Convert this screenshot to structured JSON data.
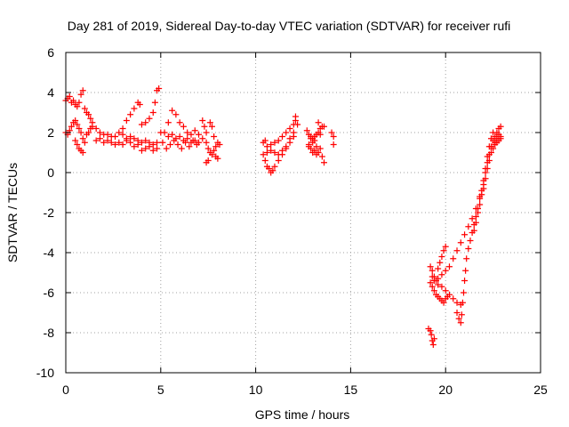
{
  "chart_data": {
    "type": "scatter",
    "title": "Day 281 of 2019, Sidereal Day-to-day VTEC variation (SDTVAR) for receiver rufi",
    "xlabel": "GPS time / hours",
    "ylabel": "SDTVAR / TECUs",
    "xlim": [
      0,
      25
    ],
    "ylim": [
      -10,
      6
    ],
    "xticks": [
      0,
      5,
      10,
      15,
      20,
      25
    ],
    "yticks": [
      -10,
      -8,
      -6,
      -4,
      -2,
      0,
      2,
      4,
      6
    ],
    "grid": true,
    "marker": "plus",
    "color": "#ff0000",
    "series": [
      {
        "points": [
          [
            0.0,
            3.6
          ],
          [
            0.1,
            3.7
          ],
          [
            0.2,
            3.8
          ],
          [
            0.3,
            3.5
          ],
          [
            0.4,
            3.6
          ],
          [
            0.5,
            3.4
          ],
          [
            0.6,
            3.3
          ],
          [
            0.7,
            3.5
          ],
          [
            0.8,
            3.9
          ],
          [
            0.9,
            4.1
          ],
          [
            1.0,
            3.2
          ],
          [
            1.1,
            3.0
          ],
          [
            1.2,
            2.9
          ],
          [
            1.3,
            2.7
          ],
          [
            1.4,
            2.5
          ],
          [
            0.0,
            2.0
          ],
          [
            0.1,
            1.9
          ],
          [
            0.2,
            2.1
          ],
          [
            0.3,
            2.3
          ],
          [
            0.4,
            2.5
          ],
          [
            0.5,
            2.6
          ],
          [
            0.6,
            2.4
          ],
          [
            0.7,
            2.2
          ],
          [
            0.8,
            2.0
          ],
          [
            0.9,
            1.7
          ],
          [
            1.0,
            1.5
          ],
          [
            1.1,
            1.9
          ],
          [
            1.2,
            2.0
          ],
          [
            1.3,
            2.2
          ],
          [
            1.4,
            2.3
          ],
          [
            0.5,
            1.6
          ],
          [
            0.6,
            1.4
          ],
          [
            0.7,
            1.2
          ],
          [
            0.8,
            1.1
          ],
          [
            0.9,
            1.0
          ],
          [
            1.6,
            2.2
          ],
          [
            1.8,
            2.0
          ],
          [
            2.0,
            1.9
          ],
          [
            2.2,
            1.9
          ],
          [
            2.4,
            1.8
          ],
          [
            2.6,
            1.8
          ],
          [
            2.8,
            2.0
          ],
          [
            3.0,
            2.2
          ],
          [
            3.2,
            2.6
          ],
          [
            3.4,
            2.9
          ],
          [
            3.6,
            3.2
          ],
          [
            3.8,
            3.5
          ],
          [
            3.9,
            3.4
          ],
          [
            1.6,
            1.6
          ],
          [
            1.8,
            1.7
          ],
          [
            2.0,
            1.5
          ],
          [
            2.2,
            1.6
          ],
          [
            2.4,
            1.5
          ],
          [
            2.6,
            1.4
          ],
          [
            2.8,
            1.5
          ],
          [
            3.0,
            1.4
          ],
          [
            3.2,
            1.6
          ],
          [
            3.4,
            1.5
          ],
          [
            3.6,
            1.3
          ],
          [
            3.8,
            1.4
          ],
          [
            4.0,
            1.5
          ],
          [
            4.2,
            1.6
          ],
          [
            4.4,
            1.5
          ],
          [
            4.6,
            1.4
          ],
          [
            4.8,
            1.5
          ],
          [
            3.0,
            1.9
          ],
          [
            3.2,
            1.7
          ],
          [
            3.4,
            1.8
          ],
          [
            3.6,
            1.7
          ],
          [
            3.8,
            1.6
          ],
          [
            4.0,
            1.1
          ],
          [
            4.2,
            1.2
          ],
          [
            4.4,
            1.3
          ],
          [
            4.6,
            1.1
          ],
          [
            4.8,
            1.2
          ],
          [
            4.0,
            2.4
          ],
          [
            4.2,
            2.5
          ],
          [
            4.4,
            2.7
          ],
          [
            4.6,
            3.0
          ],
          [
            4.7,
            3.5
          ],
          [
            4.8,
            4.1
          ],
          [
            4.9,
            4.2
          ],
          [
            5.0,
            2.0
          ],
          [
            5.1,
            1.5
          ],
          [
            5.3,
            1.2
          ],
          [
            5.5,
            1.4
          ],
          [
            5.7,
            1.6
          ],
          [
            5.9,
            1.4
          ],
          [
            6.1,
            1.2
          ],
          [
            6.3,
            1.5
          ],
          [
            6.5,
            1.3
          ],
          [
            6.7,
            1.6
          ],
          [
            6.9,
            1.4
          ],
          [
            5.2,
            2.0
          ],
          [
            5.4,
            2.5
          ],
          [
            5.6,
            3.1
          ],
          [
            5.8,
            2.9
          ],
          [
            6.0,
            2.5
          ],
          [
            6.2,
            2.3
          ],
          [
            6.4,
            2.0
          ],
          [
            6.6,
            1.9
          ],
          [
            6.8,
            2.1
          ],
          [
            7.0,
            1.9
          ],
          [
            7.2,
            1.7
          ],
          [
            7.4,
            1.5
          ],
          [
            5.4,
            1.8
          ],
          [
            5.6,
            1.9
          ],
          [
            5.8,
            1.7
          ],
          [
            6.0,
            1.8
          ],
          [
            6.2,
            1.6
          ],
          [
            6.4,
            1.7
          ],
          [
            6.6,
            1.5
          ],
          [
            6.8,
            1.6
          ],
          [
            7.0,
            1.5
          ],
          [
            7.2,
            2.6
          ],
          [
            7.3,
            2.3
          ],
          [
            7.4,
            2.0
          ],
          [
            7.5,
            1.2
          ],
          [
            7.6,
            1.0
          ],
          [
            7.7,
            0.9
          ],
          [
            7.8,
            1.1
          ],
          [
            7.9,
            1.3
          ],
          [
            8.0,
            1.5
          ],
          [
            8.1,
            1.4
          ],
          [
            7.6,
            2.5
          ],
          [
            7.7,
            2.3
          ],
          [
            7.8,
            1.8
          ],
          [
            7.9,
            0.8
          ],
          [
            8.0,
            0.7
          ],
          [
            7.4,
            0.5
          ],
          [
            7.5,
            0.6
          ],
          [
            10.4,
            0.9
          ],
          [
            10.5,
            0.6
          ],
          [
            10.6,
            0.3
          ],
          [
            10.7,
            0.2
          ],
          [
            10.8,
            0.0
          ],
          [
            10.9,
            0.1
          ],
          [
            11.0,
            0.3
          ],
          [
            11.2,
            0.6
          ],
          [
            11.4,
            0.9
          ],
          [
            11.6,
            1.2
          ],
          [
            11.8,
            1.5
          ],
          [
            12.0,
            1.8
          ],
          [
            10.4,
            1.5
          ],
          [
            10.5,
            1.6
          ],
          [
            10.6,
            1.3
          ],
          [
            10.8,
            1.4
          ],
          [
            11.0,
            1.5
          ],
          [
            11.2,
            1.6
          ],
          [
            11.4,
            1.8
          ],
          [
            11.6,
            2.0
          ],
          [
            11.8,
            2.2
          ],
          [
            12.0,
            2.4
          ],
          [
            12.1,
            2.6
          ],
          [
            12.2,
            2.4
          ],
          [
            10.6,
            1.0
          ],
          [
            10.8,
            1.1
          ],
          [
            11.0,
            1.0
          ],
          [
            11.2,
            0.9
          ],
          [
            11.4,
            1.1
          ],
          [
            11.6,
            1.3
          ],
          [
            11.8,
            1.7
          ],
          [
            12.0,
            2.0
          ],
          [
            12.1,
            2.8
          ],
          [
            12.7,
            2.1
          ],
          [
            12.8,
            1.9
          ],
          [
            12.9,
            1.8
          ],
          [
            13.0,
            1.7
          ],
          [
            13.1,
            1.6
          ],
          [
            13.2,
            1.9
          ],
          [
            13.3,
            2.0
          ],
          [
            13.4,
            2.2
          ],
          [
            13.5,
            2.3
          ],
          [
            13.3,
            2.5
          ],
          [
            13.4,
            1.9
          ],
          [
            12.8,
            1.4
          ],
          [
            12.9,
            1.7
          ],
          [
            13.0,
            1.5
          ],
          [
            13.1,
            1.8
          ],
          [
            13.2,
            1.3
          ],
          [
            12.8,
            1.3
          ],
          [
            12.9,
            1.2
          ],
          [
            13.0,
            1.0
          ],
          [
            13.1,
            1.1
          ],
          [
            13.2,
            0.9
          ],
          [
            13.3,
            1.0
          ],
          [
            13.4,
            1.2
          ],
          [
            13.5,
            0.8
          ],
          [
            13.6,
            0.5
          ],
          [
            13.6,
            2.3
          ],
          [
            14.0,
            2.0
          ],
          [
            14.1,
            1.8
          ],
          [
            14.1,
            1.4
          ],
          [
            19.1,
            -7.8
          ],
          [
            19.2,
            -7.9
          ],
          [
            19.25,
            -8.1
          ],
          [
            19.3,
            -8.4
          ],
          [
            19.35,
            -8.6
          ],
          [
            19.4,
            -8.3
          ],
          [
            19.2,
            -4.7
          ],
          [
            19.3,
            -4.9
          ],
          [
            19.4,
            -5.2
          ],
          [
            19.5,
            -5.4
          ],
          [
            19.6,
            -4.8
          ],
          [
            19.7,
            -4.5
          ],
          [
            19.8,
            -4.2
          ],
          [
            19.9,
            -3.9
          ],
          [
            20.0,
            -3.7
          ],
          [
            19.2,
            -5.5
          ],
          [
            19.3,
            -5.7
          ],
          [
            19.4,
            -5.9
          ],
          [
            19.5,
            -6.1
          ],
          [
            19.6,
            -6.2
          ],
          [
            19.7,
            -6.3
          ],
          [
            19.8,
            -6.4
          ],
          [
            19.9,
            -6.5
          ],
          [
            20.0,
            -6.3
          ],
          [
            20.1,
            -6.2
          ],
          [
            19.3,
            -5.2
          ],
          [
            19.4,
            -5.4
          ],
          [
            19.6,
            -5.6
          ],
          [
            19.8,
            -5.7
          ],
          [
            20.0,
            -5.9
          ],
          [
            20.2,
            -6.1
          ],
          [
            20.4,
            -6.3
          ],
          [
            20.6,
            -6.5
          ],
          [
            20.8,
            -6.6
          ],
          [
            19.6,
            -5.3
          ],
          [
            19.8,
            -5.1
          ],
          [
            20.0,
            -4.9
          ],
          [
            20.2,
            -4.7
          ],
          [
            20.4,
            -4.3
          ],
          [
            20.6,
            -3.9
          ],
          [
            20.8,
            -3.5
          ],
          [
            21.0,
            -3.1
          ],
          [
            21.2,
            -2.7
          ],
          [
            21.4,
            -2.3
          ],
          [
            21.6,
            -1.8
          ],
          [
            21.8,
            -1.2
          ],
          [
            22.0,
            -0.6
          ],
          [
            22.1,
            0.0
          ],
          [
            22.2,
            0.5
          ],
          [
            22.3,
            0.9
          ],
          [
            22.4,
            1.3
          ],
          [
            22.5,
            1.6
          ],
          [
            22.6,
            1.8
          ],
          [
            22.7,
            2.0
          ],
          [
            22.8,
            2.2
          ],
          [
            22.9,
            2.3
          ],
          [
            20.6,
            -7.0
          ],
          [
            20.7,
            -7.3
          ],
          [
            20.8,
            -7.5
          ],
          [
            20.85,
            -7.1
          ],
          [
            20.9,
            -6.5
          ],
          [
            20.95,
            -6.0
          ],
          [
            21.0,
            -5.4
          ],
          [
            21.05,
            -4.9
          ],
          [
            21.1,
            -4.3
          ],
          [
            21.2,
            -3.8
          ],
          [
            21.3,
            -3.4
          ],
          [
            21.4,
            -3.0
          ],
          [
            21.5,
            -2.6
          ],
          [
            21.6,
            -2.2
          ],
          [
            21.7,
            -1.8
          ],
          [
            21.8,
            -1.3
          ],
          [
            21.9,
            -0.9
          ],
          [
            22.0,
            -0.4
          ],
          [
            22.1,
            0.2
          ],
          [
            22.2,
            0.8
          ],
          [
            22.3,
            1.3
          ],
          [
            22.4,
            1.7
          ],
          [
            22.5,
            2.0
          ],
          [
            22.6,
            1.5
          ],
          [
            22.7,
            1.7
          ],
          [
            22.8,
            1.9
          ],
          [
            22.9,
            1.8
          ],
          [
            21.5,
            -2.9
          ],
          [
            21.6,
            -2.5
          ],
          [
            21.7,
            -2.0
          ],
          [
            21.8,
            -1.6
          ],
          [
            21.9,
            -1.1
          ],
          [
            22.0,
            -0.8
          ],
          [
            22.1,
            -0.3
          ],
          [
            22.2,
            0.2
          ],
          [
            22.3,
            0.6
          ],
          [
            22.4,
            1.0
          ],
          [
            22.5,
            1.2
          ],
          [
            22.6,
            1.4
          ],
          [
            22.7,
            1.5
          ],
          [
            22.8,
            1.6
          ],
          [
            22.9,
            1.7
          ]
        ]
      }
    ]
  }
}
